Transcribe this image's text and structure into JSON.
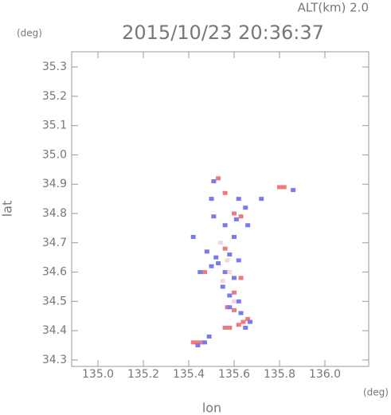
{
  "chart_data": {
    "type": "scatter",
    "annotation": "ALT(km) 2.0",
    "title": "2015/10/23 20:36:37",
    "y_unit": "(deg)",
    "x_unit": "(deg)",
    "ylabel": "lat",
    "xlabel": "lon",
    "xlim": [
      134.884,
      136.193
    ],
    "ylim": [
      34.278,
      35.352
    ],
    "xticks": [
      {
        "value": 135,
        "label": "135.0"
      },
      135.2,
      135.4,
      135.6,
      135.8,
      {
        "value": 136,
        "label": "136.0"
      }
    ],
    "yticks": [
      34.3,
      34.4,
      34.5,
      34.6,
      34.7,
      34.8,
      34.9,
      {
        "value": 35,
        "label": "35.0"
      },
      35.1,
      35.2,
      35.3
    ],
    "series": [
      {
        "color": "#f07a7a",
        "x": [
          135.53,
          135.82,
          135.8,
          135.56,
          135.47,
          135.63,
          135.6,
          135.57,
          135.6,
          135.64,
          135.62,
          135.58,
          135.56,
          135.44,
          135.42,
          135.46,
          135.6,
          135.63,
          135.56,
          135.66
        ],
        "values": [
          34.92,
          34.89,
          34.89,
          34.87,
          34.6,
          34.58,
          34.53,
          34.48,
          34.47,
          34.43,
          34.42,
          34.41,
          34.41,
          34.36,
          34.36,
          34.36,
          34.8,
          34.79,
          34.68,
          34.44
        ]
      },
      {
        "color": "#7a7af0",
        "x": [
          135.51,
          135.5,
          135.62,
          135.65,
          135.72,
          135.86,
          135.61,
          135.51,
          135.56,
          135.66,
          135.48,
          135.52,
          135.58,
          135.62,
          135.5,
          135.56,
          135.6,
          135.55,
          135.58,
          135.62,
          135.58,
          135.63,
          135.67,
          135.65,
          135.49,
          135.47,
          135.44,
          135.53,
          135.45,
          135.42,
          135.6
        ],
        "values": [
          34.91,
          34.85,
          34.85,
          34.82,
          34.85,
          34.88,
          34.78,
          34.79,
          34.76,
          34.76,
          34.67,
          34.65,
          34.66,
          34.64,
          34.62,
          34.6,
          34.58,
          34.55,
          34.52,
          34.5,
          34.48,
          34.46,
          34.43,
          34.41,
          34.38,
          34.36,
          34.35,
          34.63,
          34.6,
          34.72,
          34.72
        ]
      },
      {
        "color": "#f3d6e2",
        "x": [
          135.54,
          135.57,
          135.55,
          135.6,
          135.58
        ],
        "values": [
          34.7,
          34.64,
          34.57,
          34.5,
          34.6
        ]
      }
    ]
  }
}
